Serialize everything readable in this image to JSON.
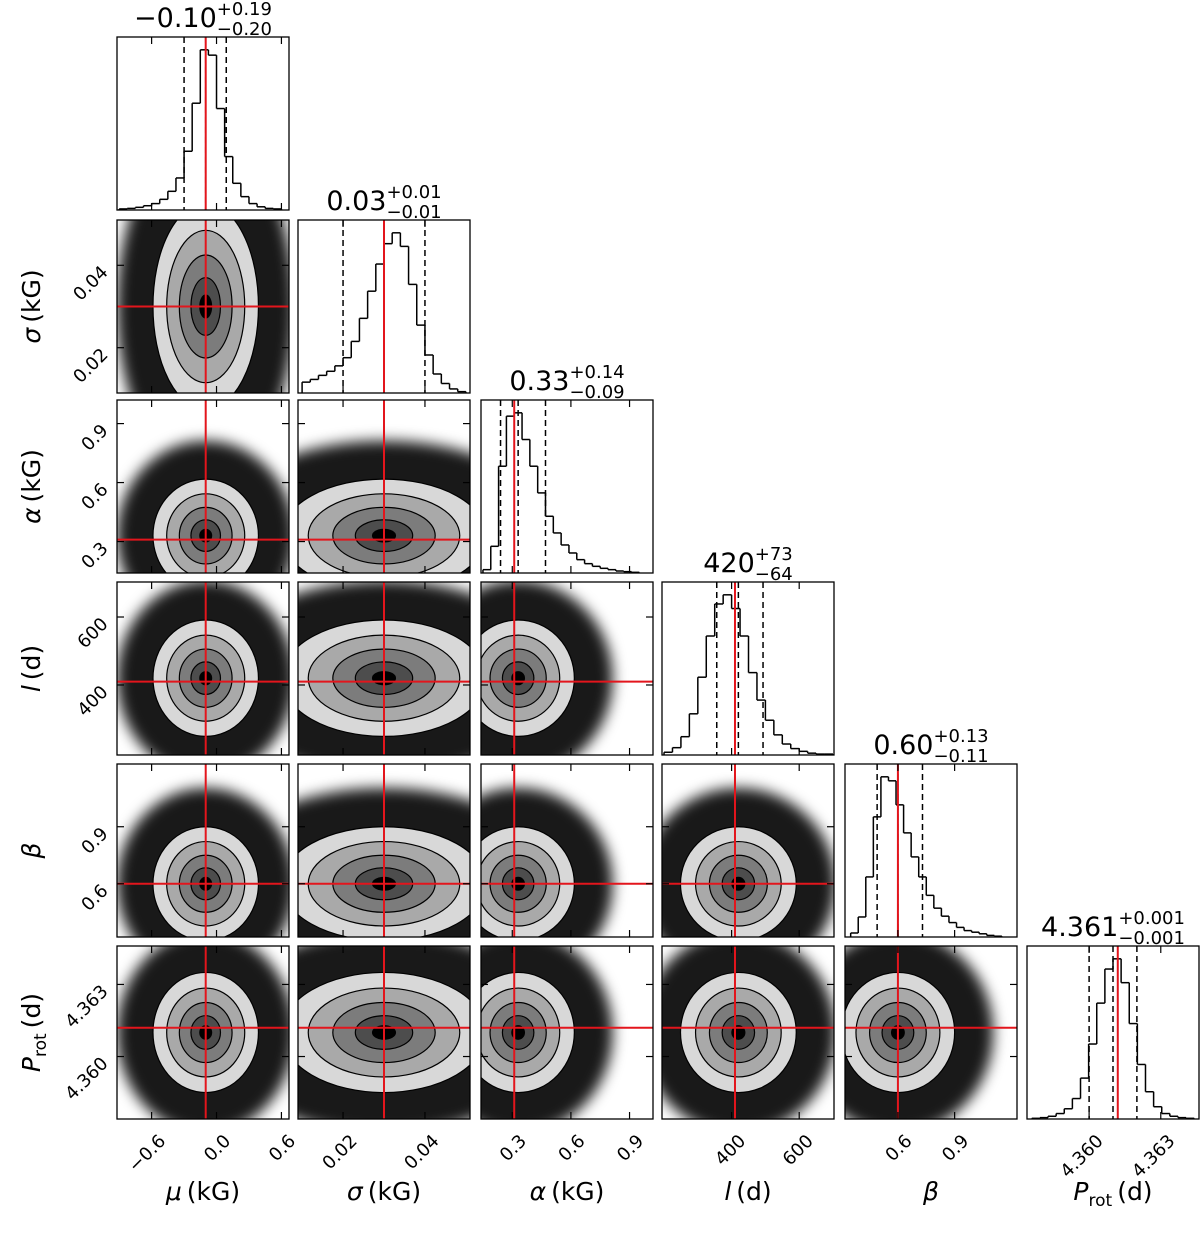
{
  "chart_data": {
    "type": "corner",
    "truth_color": "#e3151c",
    "params": [
      {
        "label": "μ",
        "label_unit": "(kG)",
        "title": {
          "median": "−0.10",
          "plus": "+0.19",
          "minus": "−0.20"
        },
        "lim": [
          -0.92,
          0.67
        ],
        "ticks": [
          {
            "value": -0.6,
            "label": "−0.6"
          },
          {
            "value": 0,
            "label": "0.0"
          },
          0.6
        ],
        "truth": -0.1,
        "quantiles": [
          -0.3,
          -0.1,
          0.09
        ],
        "bins": [
          -0.9,
          -0.825,
          -0.75,
          -0.675,
          -0.6,
          -0.525,
          -0.45,
          -0.375,
          -0.3,
          -0.225,
          -0.15,
          -0.075,
          0,
          0.075,
          0.15,
          0.225,
          0.3,
          0.375,
          0.45,
          0.525,
          0.6
        ],
        "counts": [
          2,
          3,
          5,
          8,
          12,
          20,
          35,
          60,
          110,
          200,
          300,
          290,
          190,
          100,
          50,
          25,
          12,
          6,
          3,
          2
        ]
      },
      {
        "label": "σ",
        "label_unit": "(kG)",
        "title": {
          "median": "0.03",
          "plus": "+0.01",
          "minus": "−0.01"
        },
        "lim": [
          0.009,
          0.051
        ],
        "ticks": [
          0.02,
          0.04
        ],
        "truth": 0.03,
        "quantiles": [
          0.02,
          0.03,
          0.04
        ],
        "bins": [
          0.01,
          0.012,
          0.014,
          0.016,
          0.018,
          0.02,
          0.022,
          0.024,
          0.026,
          0.028,
          0.03,
          0.032,
          0.034,
          0.036,
          0.038,
          0.04,
          0.042,
          0.044,
          0.046,
          0.048,
          0.05
        ],
        "counts": [
          8,
          10,
          13,
          16,
          20,
          26,
          38,
          55,
          75,
          95,
          110,
          118,
          108,
          80,
          50,
          28,
          14,
          7,
          3,
          1
        ]
      },
      {
        "label": "α",
        "label_unit": "(kG)",
        "title": {
          "median": "0.33",
          "plus": "+0.14",
          "minus": "−0.09"
        },
        "lim": [
          0.14,
          1.02
        ],
        "ticks": [
          0.3,
          0.6,
          0.9
        ],
        "truth": 0.31,
        "quantiles": [
          0.24,
          0.33,
          0.47
        ],
        "bins": [
          0.15,
          0.19,
          0.23,
          0.27,
          0.31,
          0.35,
          0.39,
          0.43,
          0.47,
          0.51,
          0.55,
          0.59,
          0.63,
          0.67,
          0.71,
          0.75,
          0.79,
          0.83,
          0.87,
          0.91,
          0.95
        ],
        "counts": [
          5,
          40,
          160,
          235,
          240,
          200,
          160,
          120,
          85,
          60,
          42,
          30,
          20,
          14,
          10,
          7,
          5,
          3,
          2,
          1
        ]
      },
      {
        "label": "l",
        "label_unit": "(d)",
        "title": {
          "median": "420",
          "plus": "+73",
          "minus": "−64"
        },
        "lim": [
          194,
          703
        ],
        "ticks": [
          400,
          600
        ],
        "truth": 410,
        "quantiles": [
          356,
          420,
          493
        ],
        "bins": [
          200,
          225,
          250,
          275,
          300,
          325,
          350,
          375,
          400,
          425,
          450,
          475,
          500,
          525,
          550,
          575,
          600,
          625,
          650,
          675,
          700
        ],
        "counts": [
          3,
          8,
          20,
          45,
          85,
          130,
          165,
          175,
          160,
          130,
          90,
          60,
          38,
          22,
          12,
          7,
          4,
          2,
          1,
          1
        ]
      },
      {
        "label": "β",
        "title": {
          "median": "0.60",
          "plus": "+0.13",
          "minus": "−0.11"
        },
        "lim": [
          0.32,
          1.23
        ],
        "ticks": [
          0.6,
          0.9
        ],
        "truth": 0.6,
        "quantiles": [
          0.49,
          0.6,
          0.73
        ],
        "bins": [
          0.35,
          0.39,
          0.43,
          0.47,
          0.51,
          0.55,
          0.59,
          0.63,
          0.67,
          0.71,
          0.75,
          0.79,
          0.83,
          0.87,
          0.91,
          0.95,
          0.99,
          1.03,
          1.07,
          1.11,
          1.15
        ],
        "counts": [
          5,
          25,
          75,
          150,
          200,
          195,
          165,
          130,
          100,
          75,
          52,
          36,
          26,
          18,
          12,
          8,
          6,
          4,
          2,
          1
        ]
      },
      {
        "label": "P",
        "label_sub": "rot",
        "label_unit": "(d)",
        "title": {
          "median": "4.361",
          "plus": "+0.001",
          "minus": "−0.001"
        },
        "lim": [
          4.3574,
          4.3646
        ],
        "ticks": [
          {
            "value": 4.36,
            "label": "4.360"
          },
          4.363
        ],
        "truth": 4.3612,
        "quantiles": [
          4.36,
          4.361,
          4.362
        ],
        "bins": [
          4.3576,
          4.35794,
          4.35828,
          4.35862,
          4.35896,
          4.3593,
          4.35964,
          4.35998,
          4.36032,
          4.36066,
          4.361,
          4.36134,
          4.36168,
          4.36202,
          4.36236,
          4.3627,
          4.36304,
          4.36338,
          4.36372,
          4.36406,
          4.3644
        ],
        "counts": [
          1,
          2,
          4,
          8,
          15,
          30,
          60,
          110,
          170,
          220,
          235,
          200,
          140,
          80,
          40,
          18,
          8,
          4,
          2,
          1
        ]
      }
    ]
  }
}
